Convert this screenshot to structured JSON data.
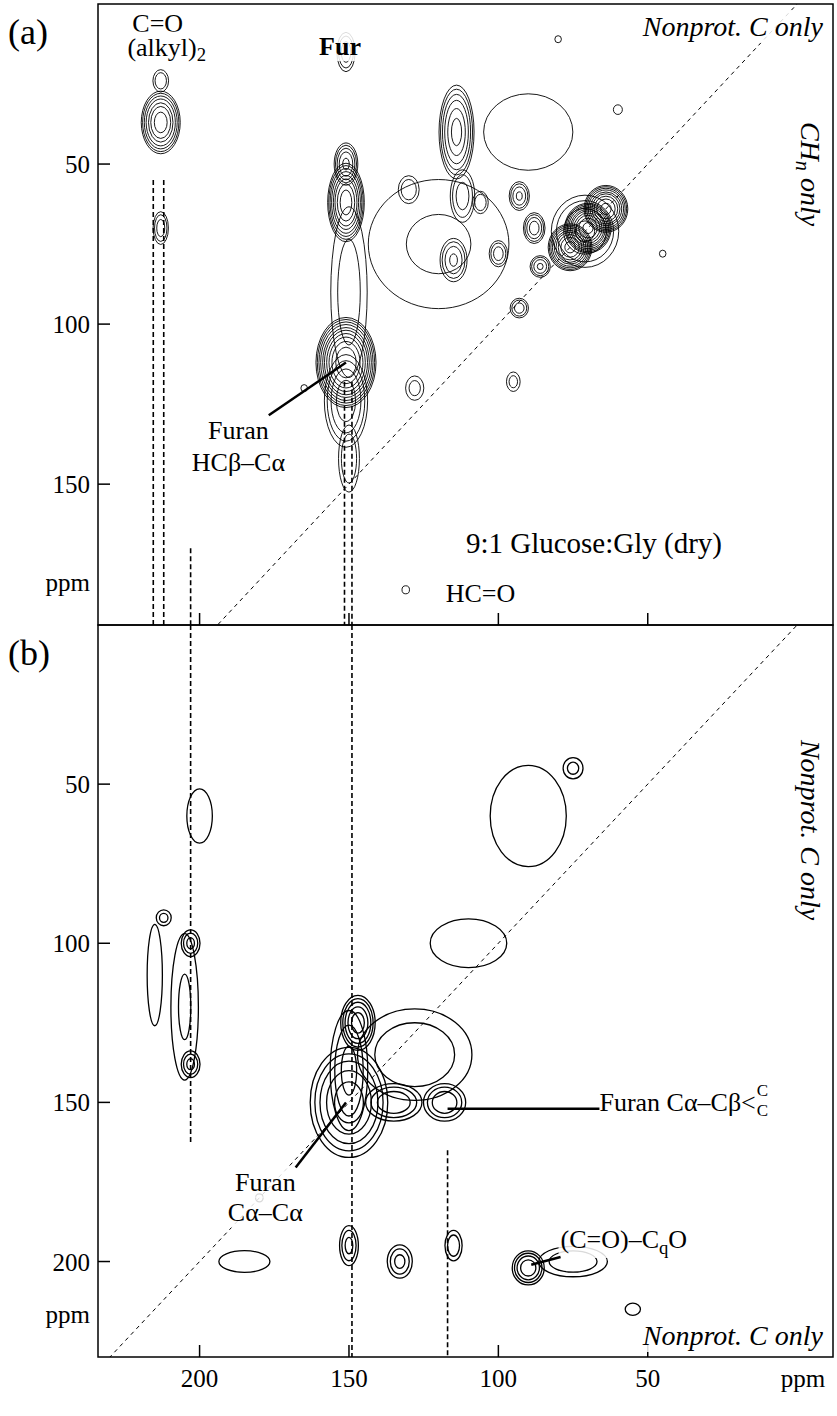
{
  "chart_data": [
    {
      "type": "contour",
      "panel": "(a)",
      "title": "Nonprot. C only",
      "side_label": [
        "CH",
        "n",
        " only"
      ],
      "y_title": "ppm",
      "xlim": [
        234,
        -12
      ],
      "ylim": [
        0,
        194
      ],
      "xticks": [
        200,
        150,
        100,
        50
      ],
      "yticks": [
        50,
        100,
        150
      ],
      "tick_labels": "y",
      "levels": [
        1.4,
        2,
        3,
        4.5,
        7,
        10,
        15,
        22,
        33,
        50
      ],
      "peaks": [
        {
          "x": 70,
          "y": 70,
          "wx": 4,
          "wy": 4,
          "height": 60
        },
        {
          "x": 64,
          "y": 64,
          "wx": 4,
          "wy": 4,
          "height": 40
        },
        {
          "x": 76,
          "y": 76,
          "wx": 4,
          "wy": 4,
          "height": 40
        },
        {
          "x": 71,
          "y": 71,
          "wx": 10,
          "wy": 10,
          "height": 5
        },
        {
          "x": 151,
          "y": 62,
          "wx": 3.5,
          "wy": 7,
          "height": 30
        },
        {
          "x": 151,
          "y": 50,
          "wx": 3,
          "wy": 5,
          "height": 8
        },
        {
          "x": 151,
          "y": 112,
          "wx": 5,
          "wy": 7,
          "height": 80
        },
        {
          "x": 151,
          "y": 124,
          "wx": 6,
          "wy": 12,
          "height": 6
        },
        {
          "x": 150,
          "y": 142,
          "wx": 4,
          "wy": 12,
          "height": 3
        },
        {
          "x": 151,
          "y": 15,
          "wx": 3,
          "wy": 6,
          "height": 4
        },
        {
          "x": 213,
          "y": 37,
          "wx": 4,
          "wy": 6,
          "height": 20
        },
        {
          "x": 213,
          "y": 70,
          "wx": 2.5,
          "wy": 5,
          "height": 4
        },
        {
          "x": 213,
          "y": 24,
          "wx": 3,
          "wy": 4,
          "height": 3
        },
        {
          "x": 114,
          "y": 40,
          "wx": 4,
          "wy": 10,
          "height": 12
        },
        {
          "x": 112,
          "y": 60,
          "wx": 4,
          "wy": 8,
          "height": 4
        },
        {
          "x": 115,
          "y": 80,
          "wx": 4,
          "wy": 6,
          "height": 5
        },
        {
          "x": 93,
          "y": 60,
          "wx": 3,
          "wy": 4,
          "height": 5
        },
        {
          "x": 88,
          "y": 70,
          "wx": 3,
          "wy": 4,
          "height": 6
        },
        {
          "x": 100,
          "y": 78,
          "wx": 3,
          "wy": 4,
          "height": 4
        },
        {
          "x": 86,
          "y": 82,
          "wx": 3,
          "wy": 3,
          "height": 5
        },
        {
          "x": 93,
          "y": 95,
          "wx": 3,
          "wy": 3,
          "height": 4
        },
        {
          "x": 106,
          "y": 62,
          "wx": 3,
          "wy": 4,
          "height": 3
        },
        {
          "x": 130,
          "y": 58,
          "wx": 4,
          "wy": 5,
          "height": 3
        },
        {
          "x": 128,
          "y": 120,
          "wx": 4,
          "wy": 5,
          "height": 2.5
        },
        {
          "x": 95,
          "y": 118,
          "wx": 3,
          "wy": 4,
          "height": 2.5
        },
        {
          "x": 120,
          "y": 75,
          "wx": 35,
          "wy": 30,
          "height": 2.2
        },
        {
          "x": 150,
          "y": 90,
          "wx": 8,
          "wy": 35,
          "height": 2.5
        },
        {
          "x": 90,
          "y": 40,
          "wx": 25,
          "wy": 20,
          "height": 2
        },
        {
          "x": 131,
          "y": 183,
          "wx": 2.5,
          "wy": 2.5,
          "height": 1.8
        },
        {
          "x": 45,
          "y": 78,
          "wx": 3,
          "wy": 3,
          "height": 1.6
        },
        {
          "x": 165,
          "y": 120,
          "wx": 3,
          "wy": 3,
          "height": 1.6
        },
        {
          "x": 60,
          "y": 33,
          "wx": 3,
          "wy": 3,
          "height": 1.8
        },
        {
          "x": 80,
          "y": 11,
          "wx": 3,
          "wy": 3,
          "height": 1.6
        }
      ],
      "guides": [
        {
          "x": 215.5,
          "y": [
            55,
            194
          ]
        },
        {
          "x": 212,
          "y": [
            55,
            194
          ]
        },
        {
          "x": 203,
          "y": [
            170,
            194
          ]
        },
        {
          "x": 151.5,
          "y": [
            118,
            194
          ]
        },
        {
          "x": 149,
          "y": [
            118,
            194
          ]
        }
      ],
      "annotations": [
        {
          "text": [
            "C=O"
          ],
          "x": 214,
          "y": 6
        },
        {
          "text": [
            "(alkyl)",
            "2"
          ],
          "x": 211,
          "y": 13.5
        },
        {
          "text": [
            "Fur"
          ],
          "x": 153,
          "y": 13,
          "style": "bold"
        },
        {
          "text": [
            "Furan"
          ],
          "x": 187,
          "y": 133,
          "target": [
            151,
            112
          ]
        },
        {
          "text": [
            "HCβ–Cα"
          ],
          "x": 187,
          "y": 143
        },
        {
          "text": [
            "9:1 Glucose:Gly (dry)"
          ],
          "x": 68,
          "y": 168.5
        },
        {
          "text": [
            "HC=O"
          ],
          "x": 106,
          "y": 184
        }
      ]
    },
    {
      "type": "contour",
      "panel": "(b)",
      "side_label": [
        "Nonprot. C only"
      ],
      "bottom_label": "Nonprot. C only",
      "y_title": "ppm",
      "x_title": "ppm",
      "xlim": [
        234,
        -12
      ],
      "ylim": [
        0,
        230
      ],
      "xticks": [
        200,
        150,
        100,
        50
      ],
      "yticks": [
        50,
        100,
        150,
        200
      ],
      "levels": [
        1,
        1.6,
        2.5,
        4,
        6
      ],
      "peaks": [
        {
          "x": 150,
          "y": 150,
          "wx": 9,
          "wy": 12,
          "height": 8
        },
        {
          "x": 147,
          "y": 125,
          "wx": 4,
          "wy": 6,
          "height": 8
        },
        {
          "x": 118,
          "y": 150,
          "wx": 6,
          "wy": 5,
          "height": 4
        },
        {
          "x": 135,
          "y": 150,
          "wx": 8,
          "wy": 5,
          "height": 4
        },
        {
          "x": 150,
          "y": 140,
          "wx": 6,
          "wy": 18,
          "height": 3
        },
        {
          "x": 128,
          "y": 135,
          "wx": 20,
          "wy": 15,
          "height": 2.5
        },
        {
          "x": 203,
          "y": 100,
          "wx": 3,
          "wy": 4,
          "height": 3
        },
        {
          "x": 203,
          "y": 138,
          "wx": 3,
          "wy": 4,
          "height": 3
        },
        {
          "x": 205,
          "y": 120,
          "wx": 6,
          "wy": 30,
          "height": 1.8
        },
        {
          "x": 212,
          "y": 92,
          "wx": 3,
          "wy": 3,
          "height": 2
        },
        {
          "x": 215,
          "y": 110,
          "wx": 4,
          "wy": 25,
          "height": 1.5
        },
        {
          "x": 90,
          "y": 202,
          "wx": 4,
          "wy": 4,
          "height": 6
        },
        {
          "x": 75,
          "y": 200,
          "wx": 12,
          "wy": 5,
          "height": 2.5
        },
        {
          "x": 150,
          "y": 195,
          "wx": 3,
          "wy": 6,
          "height": 3
        },
        {
          "x": 133,
          "y": 200,
          "wx": 4,
          "wy": 5,
          "height": 3
        },
        {
          "x": 115,
          "y": 195,
          "wx": 3,
          "wy": 5,
          "height": 2.5
        },
        {
          "x": 55,
          "y": 215,
          "wx": 4,
          "wy": 3,
          "height": 1.5
        },
        {
          "x": 185,
          "y": 200,
          "wx": 20,
          "wy": 8,
          "height": 1.2
        },
        {
          "x": 90,
          "y": 60,
          "wx": 20,
          "wy": 25,
          "height": 1.5
        },
        {
          "x": 110,
          "y": 100,
          "wx": 25,
          "wy": 15,
          "height": 1.3
        },
        {
          "x": 75,
          "y": 45,
          "wx": 4,
          "wy": 4,
          "height": 2
        },
        {
          "x": 200,
          "y": 60,
          "wx": 10,
          "wy": 20,
          "height": 1.2
        },
        {
          "x": 180,
          "y": 180,
          "wx": 2,
          "wy": 2,
          "height": 1.5
        }
      ],
      "guides": [
        {
          "x": 203,
          "y": [
            0,
            163
          ]
        },
        {
          "x": 149,
          "y": [
            0,
            230
          ]
        },
        {
          "x": 117,
          "y": [
            165,
            230
          ]
        }
      ],
      "annotations": [
        {
          "text": [
            "Furan"
          ],
          "x": 178,
          "y": 175,
          "target": [
            151,
            150
          ]
        },
        {
          "text": [
            "Cα–Cα"
          ],
          "x": 178,
          "y": 184.5
        },
        {
          "text": [
            "Furan Cα–Cβ<"
          ],
          "stack": [
            "C",
            "C"
          ],
          "x": 38,
          "y": 150,
          "target": [
            117,
            152
          ]
        },
        {
          "text": [
            "(C=O)–C",
            "q",
            "O"
          ],
          "x": 58,
          "y": 193,
          "target": [
            89,
            201
          ]
        }
      ]
    }
  ]
}
